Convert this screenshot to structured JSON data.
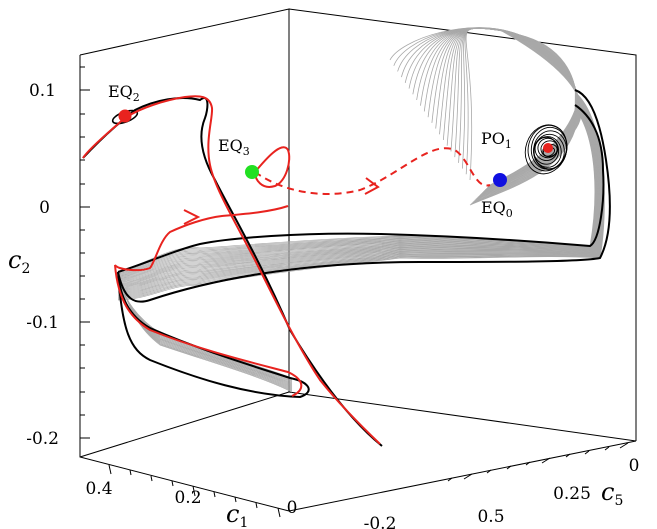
{
  "axes": {
    "c2": {
      "title": "c",
      "subscript": "2",
      "tick_labels": [
        "0.1",
        "0",
        "-0.1",
        "-0.2"
      ]
    },
    "c1": {
      "title": "c",
      "subscript": "1",
      "tick_labels": [
        "0.4",
        "0.2",
        "0",
        "-0.2"
      ]
    },
    "c5": {
      "title": "c",
      "subscript": "5",
      "tick_labels": [
        "0",
        "0.25",
        "0.5"
      ]
    }
  },
  "points": [
    {
      "name": "EQ",
      "sub": "2",
      "color": "#e8231f"
    },
    {
      "name": "EQ",
      "sub": "3",
      "color": "#22e022"
    },
    {
      "name": "EQ",
      "sub": "0",
      "color": "#1010e0"
    },
    {
      "name": "PO",
      "sub": "1",
      "color": "#e8231f"
    }
  ],
  "colors": {
    "trajectory": "#e8231f",
    "manifold_lines": "#a8a8a8",
    "boundary": "#000000",
    "box": "#000000"
  }
}
